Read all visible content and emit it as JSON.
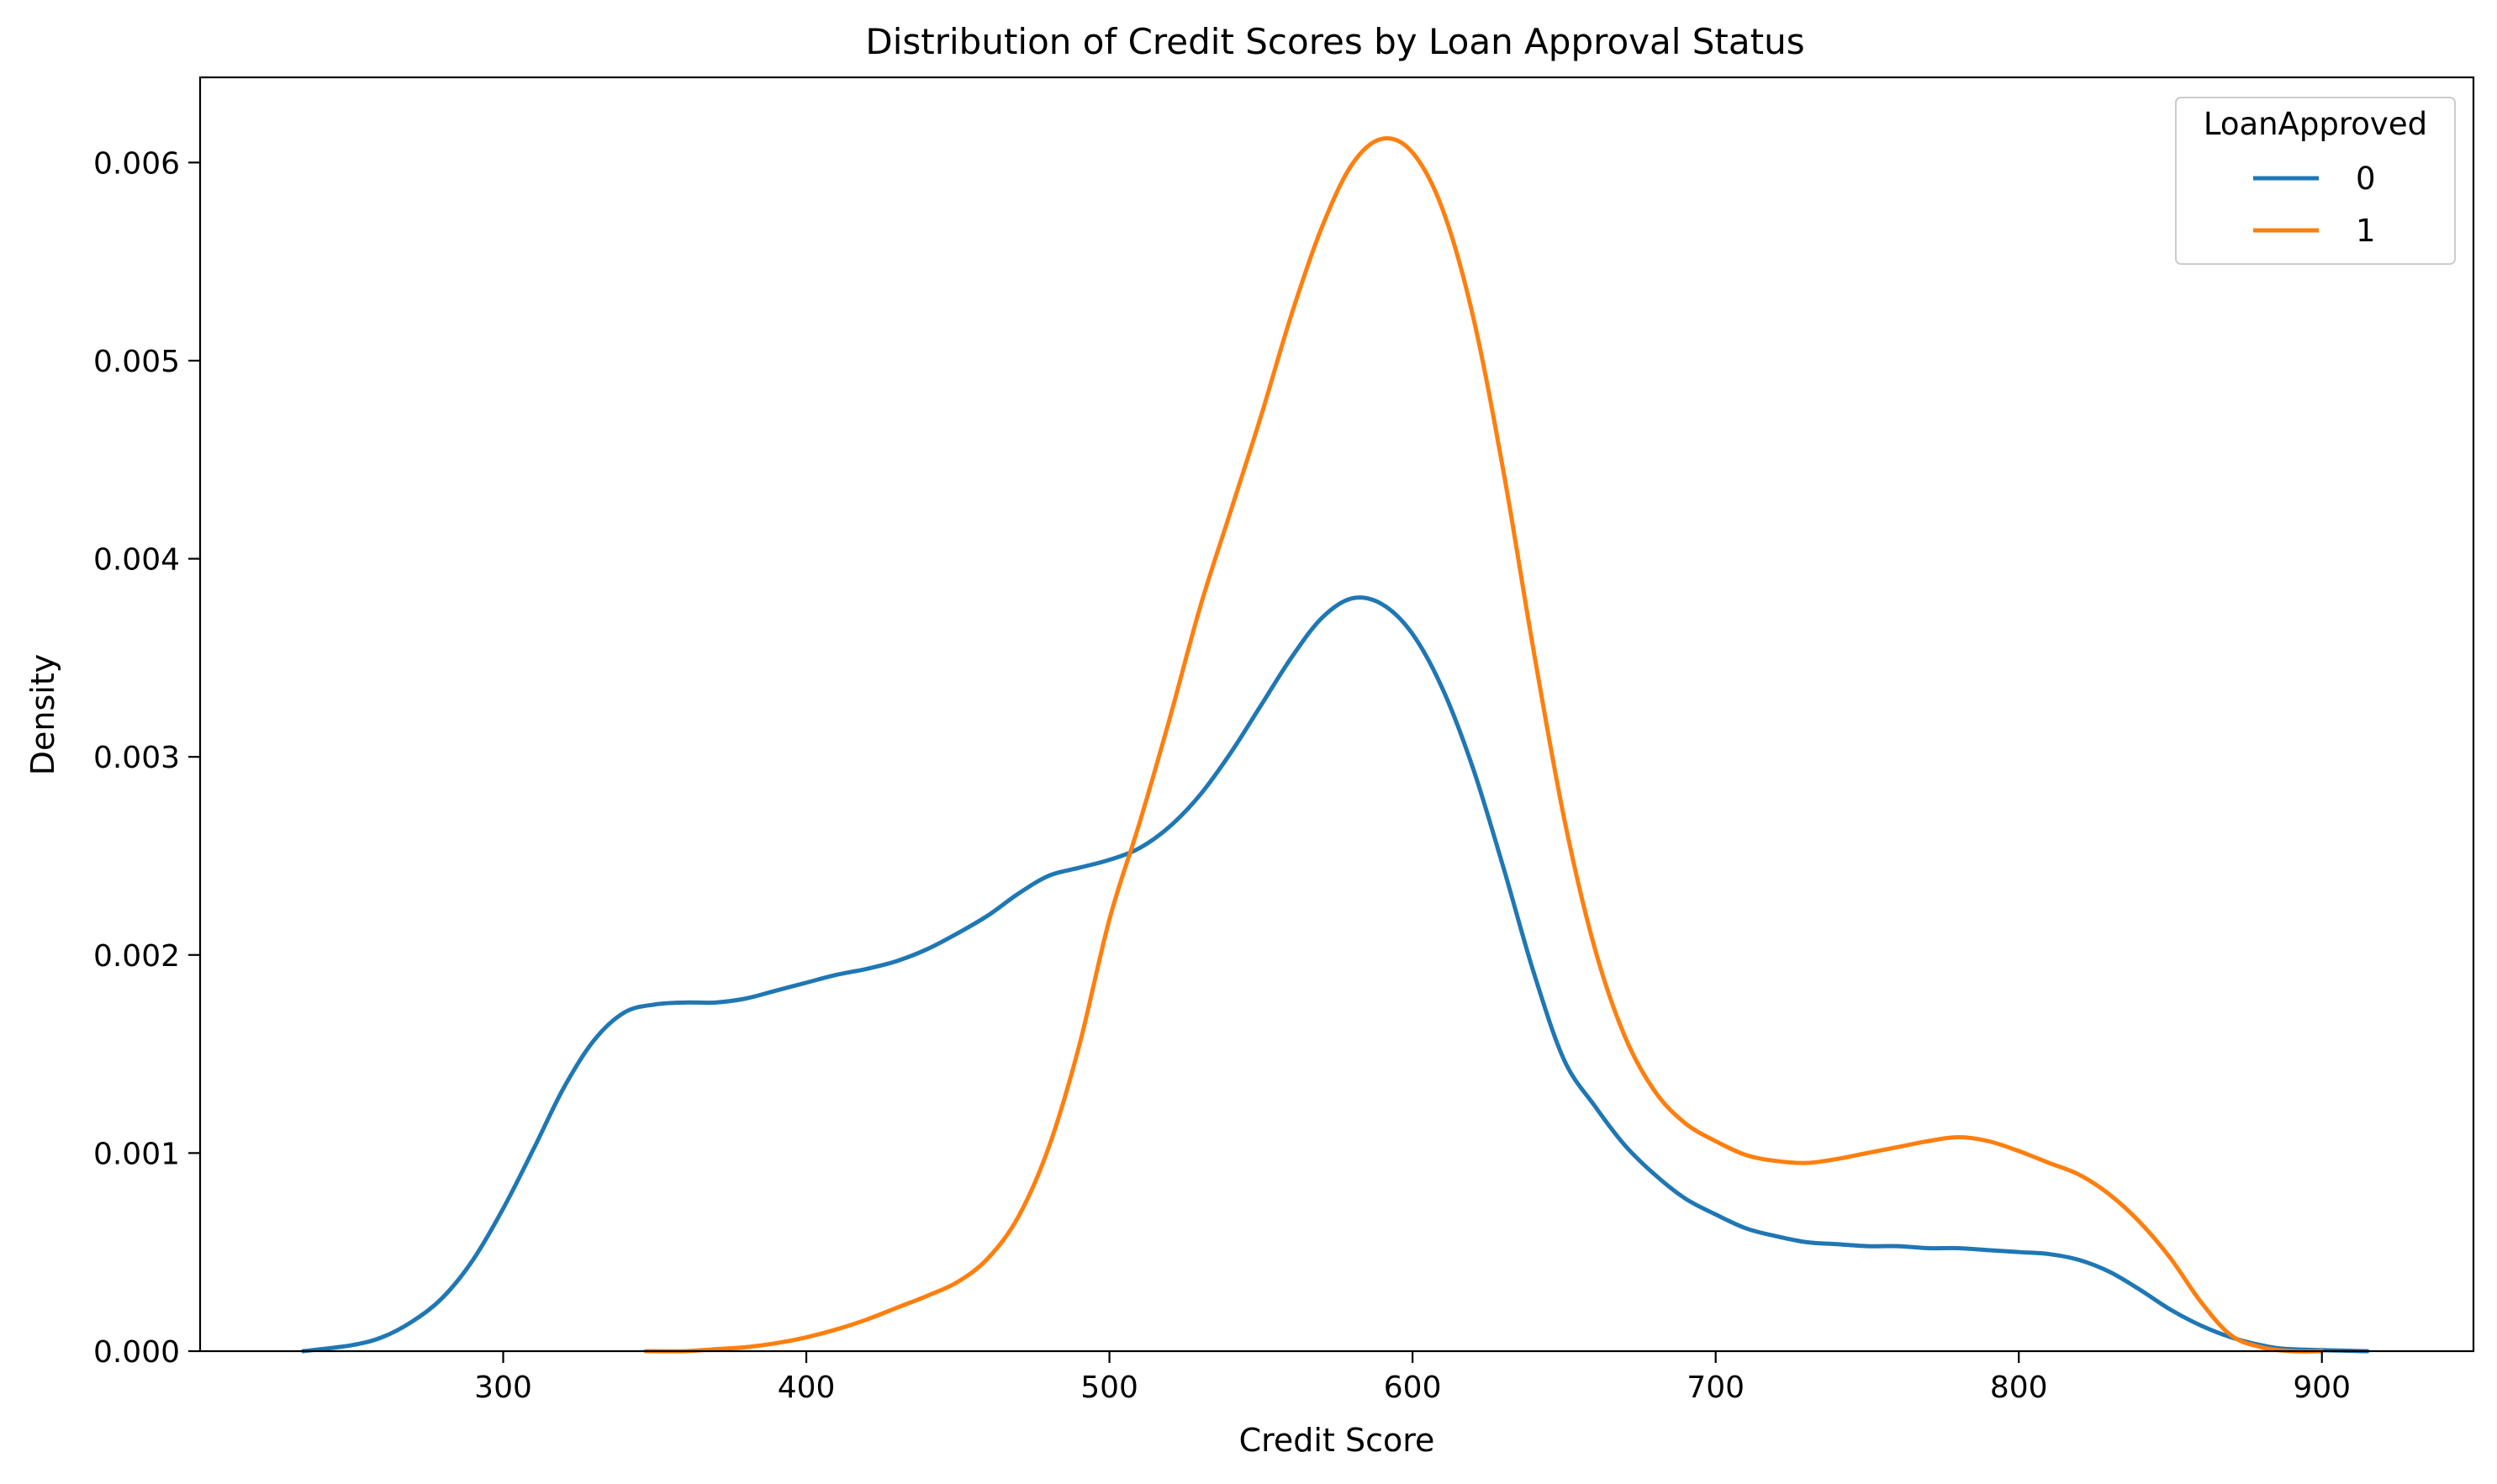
{
  "chart_data": {
    "type": "line",
    "title": "Distribution of Credit Scores by Loan Approval Status",
    "xlabel": "Credit Score",
    "ylabel": "Density",
    "xlim": [
      200,
      950
    ],
    "ylim": [
      0,
      0.00643
    ],
    "x_ticks": [
      {
        "value": 300,
        "label": "300"
      },
      {
        "value": 400,
        "label": "400"
      },
      {
        "value": 500,
        "label": "500"
      },
      {
        "value": 600,
        "label": "600"
      },
      {
        "value": 700,
        "label": "700"
      },
      {
        "value": 800,
        "label": "800"
      },
      {
        "value": 900,
        "label": "900"
      }
    ],
    "y_ticks": [
      {
        "value": 0.0,
        "label": "0.000"
      },
      {
        "value": 0.001,
        "label": "0.001"
      },
      {
        "value": 0.002,
        "label": "0.002"
      },
      {
        "value": 0.003,
        "label": "0.003"
      },
      {
        "value": 0.004,
        "label": "0.004"
      },
      {
        "value": 0.005,
        "label": "0.005"
      },
      {
        "value": 0.006,
        "label": "0.006"
      }
    ],
    "grid": false,
    "legend": {
      "title": "LoanApproved",
      "placement": "top-right"
    },
    "series": [
      {
        "name": "0",
        "color": "#1f77b4",
        "points": [
          [
            234,
            0.0
          ],
          [
            250,
            3e-05
          ],
          [
            260,
            7e-05
          ],
          [
            270,
            0.00015
          ],
          [
            280,
            0.00027
          ],
          [
            290,
            0.00046
          ],
          [
            300,
            0.00072
          ],
          [
            310,
            0.00102
          ],
          [
            320,
            0.00133
          ],
          [
            330,
            0.00157
          ],
          [
            340,
            0.00171
          ],
          [
            350,
            0.00175
          ],
          [
            360,
            0.00176
          ],
          [
            370,
            0.00176
          ],
          [
            380,
            0.00178
          ],
          [
            390,
            0.00182
          ],
          [
            400,
            0.00186
          ],
          [
            410,
            0.0019
          ],
          [
            420,
            0.00193
          ],
          [
            430,
            0.00197
          ],
          [
            440,
            0.00203
          ],
          [
            450,
            0.00211
          ],
          [
            460,
            0.0022
          ],
          [
            470,
            0.00231
          ],
          [
            480,
            0.0024
          ],
          [
            490,
            0.00244
          ],
          [
            500,
            0.00248
          ],
          [
            510,
            0.00254
          ],
          [
            520,
            0.00265
          ],
          [
            530,
            0.00281
          ],
          [
            540,
            0.00302
          ],
          [
            550,
            0.00326
          ],
          [
            560,
            0.0035
          ],
          [
            570,
            0.0037
          ],
          [
            580,
            0.0038
          ],
          [
            590,
            0.00377
          ],
          [
            600,
            0.00362
          ],
          [
            610,
            0.00334
          ],
          [
            620,
            0.00294
          ],
          [
            630,
            0.00244
          ],
          [
            640,
            0.00191
          ],
          [
            650,
            0.00147
          ],
          [
            660,
            0.00124
          ],
          [
            670,
            0.00104
          ],
          [
            680,
            0.00089
          ],
          [
            690,
            0.00077
          ],
          [
            700,
            0.00069
          ],
          [
            710,
            0.00062
          ],
          [
            720,
            0.00058
          ],
          [
            730,
            0.00055
          ],
          [
            740,
            0.00054
          ],
          [
            750,
            0.00053
          ],
          [
            760,
            0.00053
          ],
          [
            770,
            0.00052
          ],
          [
            780,
            0.00052
          ],
          [
            790,
            0.00051
          ],
          [
            800,
            0.0005
          ],
          [
            810,
            0.00049
          ],
          [
            820,
            0.00046
          ],
          [
            830,
            0.0004
          ],
          [
            840,
            0.00031
          ],
          [
            850,
            0.00021
          ],
          [
            860,
            0.00013
          ],
          [
            870,
            7e-05
          ],
          [
            880,
            3e-05
          ],
          [
            890,
            1e-05
          ],
          [
            915,
            0.0
          ]
        ]
      },
      {
        "name": "1",
        "color": "#ff7f0e",
        "points": [
          [
            347,
            0.0
          ],
          [
            360,
            0.0
          ],
          [
            370,
            1e-05
          ],
          [
            380,
            2e-05
          ],
          [
            390,
            4e-05
          ],
          [
            400,
            7e-05
          ],
          [
            410,
            0.00011
          ],
          [
            420,
            0.00016
          ],
          [
            430,
            0.00022
          ],
          [
            440,
            0.00028
          ],
          [
            450,
            0.00035
          ],
          [
            460,
            0.00047
          ],
          [
            470,
            0.00068
          ],
          [
            480,
            0.00103
          ],
          [
            490,
            0.00154
          ],
          [
            500,
            0.00218
          ],
          [
            510,
            0.00267
          ],
          [
            520,
            0.0032
          ],
          [
            530,
            0.00376
          ],
          [
            540,
            0.00424
          ],
          [
            550,
            0.00472
          ],
          [
            560,
            0.00523
          ],
          [
            570,
            0.00567
          ],
          [
            580,
            0.00599
          ],
          [
            590,
            0.00612
          ],
          [
            600,
            0.00605
          ],
          [
            610,
            0.00576
          ],
          [
            620,
            0.00522
          ],
          [
            630,
            0.00444
          ],
          [
            640,
            0.00353
          ],
          [
            650,
            0.00269
          ],
          [
            660,
            0.00204
          ],
          [
            670,
            0.00159
          ],
          [
            680,
            0.00131
          ],
          [
            690,
            0.00115
          ],
          [
            700,
            0.00106
          ],
          [
            710,
            0.00099
          ],
          [
            720,
            0.00096
          ],
          [
            730,
            0.00095
          ],
          [
            740,
            0.00097
          ],
          [
            750,
            0.001
          ],
          [
            760,
            0.00103
          ],
          [
            770,
            0.00106
          ],
          [
            780,
            0.00108
          ],
          [
            790,
            0.00106
          ],
          [
            800,
            0.00101
          ],
          [
            810,
            0.00095
          ],
          [
            820,
            0.00089
          ],
          [
            830,
            0.00079
          ],
          [
            840,
            0.00065
          ],
          [
            850,
            0.00047
          ],
          [
            860,
            0.00025
          ],
          [
            870,
            8e-05
          ],
          [
            880,
            2e-05
          ],
          [
            890,
            0.0
          ],
          [
            900,
            0.0
          ]
        ]
      }
    ]
  }
}
